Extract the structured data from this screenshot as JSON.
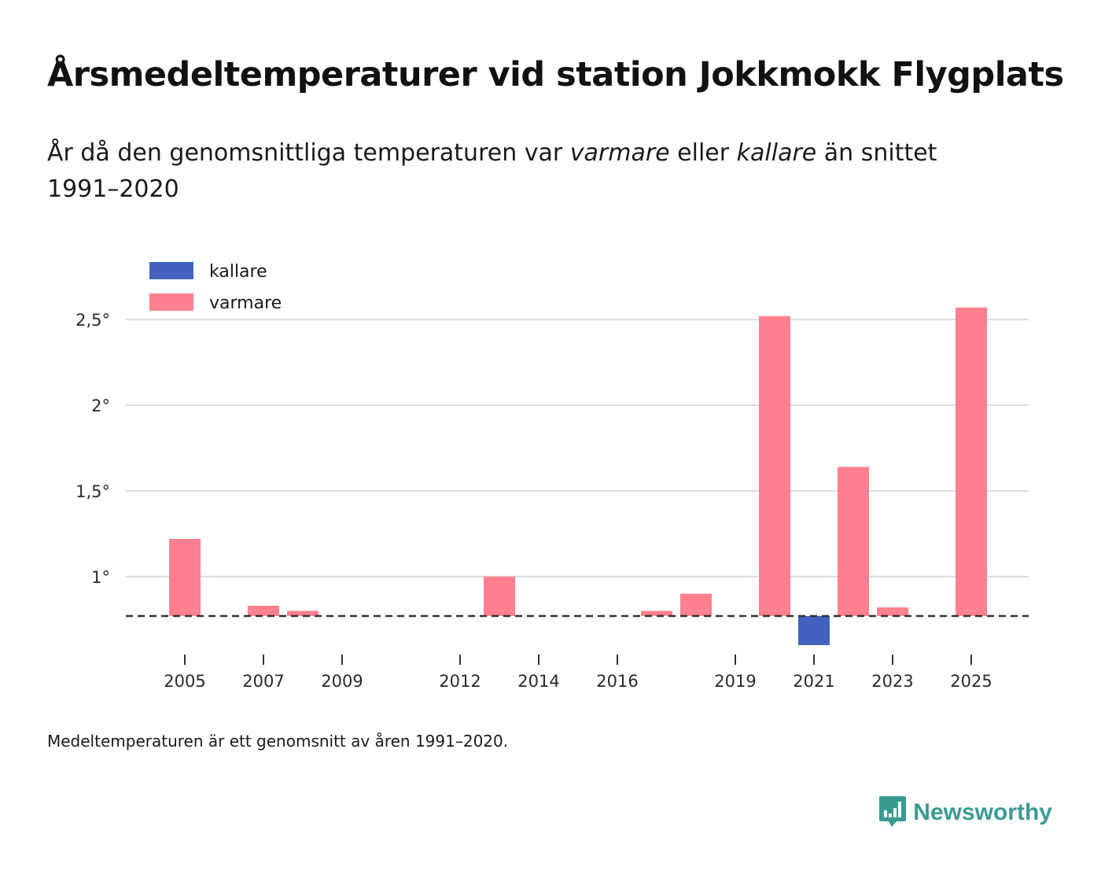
{
  "header": {
    "title": "Årsmedeltemperaturer vid station Jokkmokk Flygplats",
    "subtitle_prefix": "År då den genomsnittliga temperaturen var ",
    "subtitle_warm": "varmare",
    "subtitle_mid": " eller ",
    "subtitle_cold": "kallare",
    "subtitle_suffix": " än snittet 1991–2020"
  },
  "footnote": "Medeltemperaturen är ett genomsnitt av åren 1991–2020.",
  "brand": {
    "name": "Newsworthy",
    "icon": "bar-chart-speech-icon",
    "color": "#3a9a92"
  },
  "colors": {
    "warm": "#ff808f",
    "cold": "#4262be",
    "grid": "#dddddd",
    "baseline": "#333333"
  },
  "chart_data": {
    "type": "bar",
    "title": "Årsmedeltemperaturer vid station Jokkmokk Flygplats",
    "xlabel": "",
    "ylabel": "",
    "baseline": 0.77,
    "ylim": [
      0.6,
      2.62
    ],
    "yticks": [
      1,
      1.5,
      2,
      2.5
    ],
    "ytick_labels": [
      "1°",
      "1,5°",
      "2°",
      "2,5°"
    ],
    "xlim": [
      2004,
      2026
    ],
    "xticks": [
      2005,
      2007,
      2009,
      2012,
      2014,
      2016,
      2019,
      2021,
      2023,
      2025
    ],
    "xtick_labels": [
      "2005",
      "2007",
      "2009",
      "2012",
      "2014",
      "2016",
      "2019",
      "2021",
      "2023",
      "2025"
    ],
    "legend": {
      "position": "top-left",
      "entries": [
        {
          "label": "kallare",
          "series": "cold"
        },
        {
          "label": "varmare",
          "series": "warm"
        }
      ]
    },
    "series": [
      {
        "name": "varmare",
        "color": "#ff808f",
        "x": [
          2005,
          2007,
          2008,
          2013,
          2017,
          2018,
          2020,
          2022,
          2023,
          2025
        ],
        "values": [
          1.22,
          0.83,
          0.8,
          1.0,
          0.8,
          0.9,
          2.52,
          1.64,
          0.82,
          2.57
        ]
      },
      {
        "name": "kallare",
        "color": "#4262be",
        "x": [
          2021
        ],
        "values": [
          0.6
        ]
      }
    ]
  }
}
